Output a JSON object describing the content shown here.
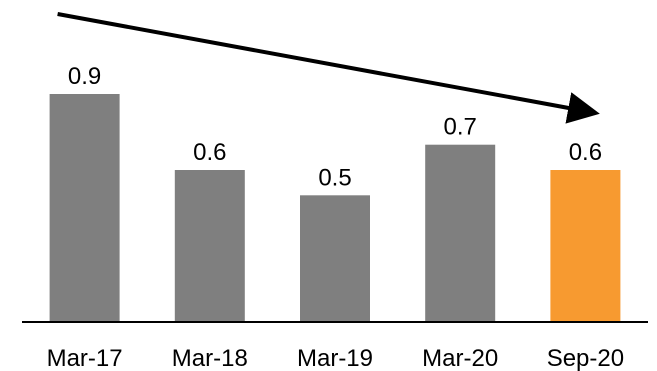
{
  "chart_data": {
    "type": "bar",
    "title": "",
    "xlabel": "",
    "ylabel": "",
    "categories": [
      "Mar-17",
      "Mar-18",
      "Mar-19",
      "Mar-20",
      "Sep-20"
    ],
    "values": [
      0.9,
      0.6,
      0.5,
      0.7,
      0.6
    ],
    "value_labels": [
      "0.9",
      "0.6",
      "0.5",
      "0.7",
      "0.6"
    ],
    "ylim": [
      0,
      0.9
    ],
    "grid": false,
    "legend": "none",
    "colors": {
      "default_bar": "#7f7f7f",
      "highlight_bar": "#f79a30",
      "axis": "#000000",
      "arrow": "#000000"
    },
    "highlight_index": 4,
    "annotations": [
      {
        "type": "trend-arrow",
        "from_category": "Mar-17",
        "to_category": "Sep-20",
        "direction": "down"
      }
    ]
  }
}
